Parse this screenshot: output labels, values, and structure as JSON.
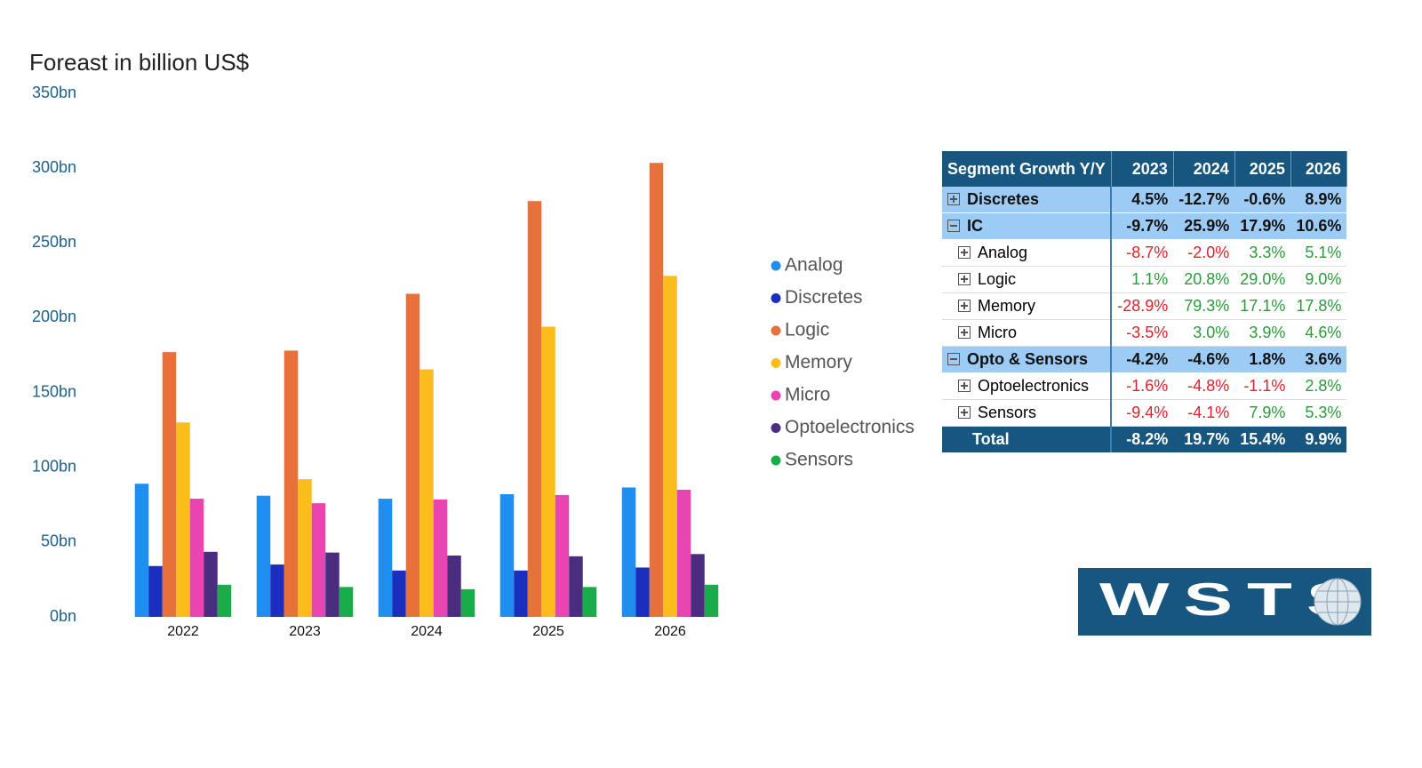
{
  "chart_data": {
    "type": "bar",
    "title": "Foreast in billion US$",
    "categories": [
      "2022",
      "2023",
      "2024",
      "2025",
      "2026"
    ],
    "series": [
      {
        "name": "Analog",
        "color": "#1e8ff0",
        "values": [
          89,
          81,
          79,
          82,
          86.5
        ]
      },
      {
        "name": "Discretes",
        "color": "#1c2ebd",
        "values": [
          34,
          35,
          31,
          31,
          33
        ]
      },
      {
        "name": "Logic",
        "color": "#e8703a",
        "values": [
          177,
          178,
          216,
          278,
          303.5
        ]
      },
      {
        "name": "Memory",
        "color": "#fbbd1c",
        "values": [
          130,
          92,
          165.5,
          194,
          228
        ]
      },
      {
        "name": "Micro",
        "color": "#e845b0",
        "values": [
          79,
          76,
          78.5,
          81.5,
          85
        ]
      },
      {
        "name": "Optoelectronics",
        "color": "#4b2d7f",
        "values": [
          43.5,
          43,
          41,
          40.5,
          42
        ]
      },
      {
        "name": "Sensors",
        "color": "#1aab4a",
        "values": [
          21.5,
          20,
          18.5,
          20,
          21.5
        ]
      }
    ],
    "ylim": [
      0,
      350
    ],
    "yticks": [
      {
        "value": 0,
        "label": "0bn"
      },
      {
        "value": 50,
        "label": "50bn"
      },
      {
        "value": 100,
        "label": "100bn"
      },
      {
        "value": 150,
        "label": "150bn"
      },
      {
        "value": 200,
        "label": "200bn"
      },
      {
        "value": 250,
        "label": "250bn"
      },
      {
        "value": 300,
        "label": "300bn"
      },
      {
        "value": 350,
        "label": "350bn"
      }
    ],
    "grid": false,
    "legend": "right"
  },
  "table": {
    "header": [
      "Segment Growth Y/Y",
      "2023",
      "2024",
      "2025",
      "2026"
    ],
    "rows": [
      {
        "label": "Discretes",
        "kind": "group",
        "expanded": false,
        "values": [
          "4.5%",
          "-12.7%",
          "-0.6%",
          "8.9%"
        ]
      },
      {
        "label": "IC",
        "kind": "group",
        "expanded": true,
        "values": [
          "-9.7%",
          "25.9%",
          "17.9%",
          "10.6%"
        ]
      },
      {
        "label": "Analog",
        "kind": "sub",
        "expanded": false,
        "values": [
          "-8.7%",
          "-2.0%",
          "3.3%",
          "5.1%"
        ]
      },
      {
        "label": "Logic",
        "kind": "sub",
        "expanded": false,
        "values": [
          "1.1%",
          "20.8%",
          "29.0%",
          "9.0%"
        ]
      },
      {
        "label": "Memory",
        "kind": "sub",
        "expanded": false,
        "values": [
          "-28.9%",
          "79.3%",
          "17.1%",
          "17.8%"
        ]
      },
      {
        "label": "Micro",
        "kind": "sub",
        "expanded": false,
        "values": [
          "-3.5%",
          "3.0%",
          "3.9%",
          "4.6%"
        ]
      },
      {
        "label": "Opto & Sensors",
        "kind": "group",
        "expanded": true,
        "values": [
          "-4.2%",
          "-4.6%",
          "1.8%",
          "3.6%"
        ]
      },
      {
        "label": "Optoelectronics",
        "kind": "sub",
        "expanded": false,
        "values": [
          "-1.6%",
          "-4.8%",
          "-1.1%",
          "2.8%"
        ]
      },
      {
        "label": "Sensors",
        "kind": "sub",
        "expanded": false,
        "values": [
          "-9.4%",
          "-4.1%",
          "7.9%",
          "5.3%"
        ]
      },
      {
        "label": "Total",
        "kind": "total",
        "values": [
          "-8.2%",
          "19.7%",
          "15.4%",
          "9.9%"
        ]
      }
    ]
  },
  "logo": "WSTS"
}
